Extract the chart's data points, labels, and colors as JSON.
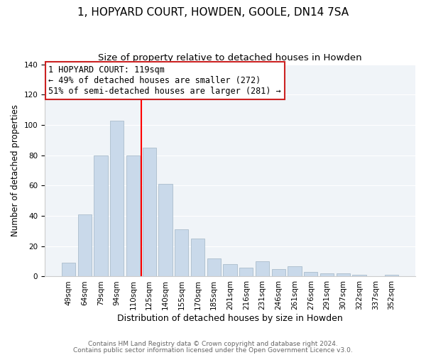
{
  "title": "1, HOPYARD COURT, HOWDEN, GOOLE, DN14 7SA",
  "subtitle": "Size of property relative to detached houses in Howden",
  "xlabel": "Distribution of detached houses by size in Howden",
  "ylabel": "Number of detached properties",
  "bar_labels": [
    "49sqm",
    "64sqm",
    "79sqm",
    "94sqm",
    "110sqm",
    "125sqm",
    "140sqm",
    "155sqm",
    "170sqm",
    "185sqm",
    "201sqm",
    "216sqm",
    "231sqm",
    "246sqm",
    "261sqm",
    "276sqm",
    "291sqm",
    "307sqm",
    "322sqm",
    "337sqm",
    "352sqm"
  ],
  "bar_values": [
    9,
    41,
    80,
    103,
    80,
    85,
    61,
    31,
    25,
    12,
    8,
    6,
    10,
    5,
    7,
    3,
    2,
    2,
    1,
    0,
    1
  ],
  "bar_color": "#c9d9ea",
  "bar_edge_color": "#aabdcc",
  "vline_x": 4.5,
  "vline_color": "red",
  "ylim": [
    0,
    140
  ],
  "yticks": [
    0,
    20,
    40,
    60,
    80,
    100,
    120,
    140
  ],
  "annotation_text_line1": "1 HOPYARD COURT: 119sqm",
  "annotation_text_line2": "← 49% of detached houses are smaller (272)",
  "annotation_text_line3": "51% of semi-detached houses are larger (281) →",
  "footer_line1": "Contains HM Land Registry data © Crown copyright and database right 2024.",
  "footer_line2": "Contains public sector information licensed under the Open Government Licence v3.0.",
  "title_fontsize": 11,
  "subtitle_fontsize": 9.5,
  "xlabel_fontsize": 9,
  "ylabel_fontsize": 8.5,
  "tick_fontsize": 7.5,
  "footer_fontsize": 6.5,
  "annotation_fontsize": 8.5,
  "background_color": "#f0f4f8"
}
